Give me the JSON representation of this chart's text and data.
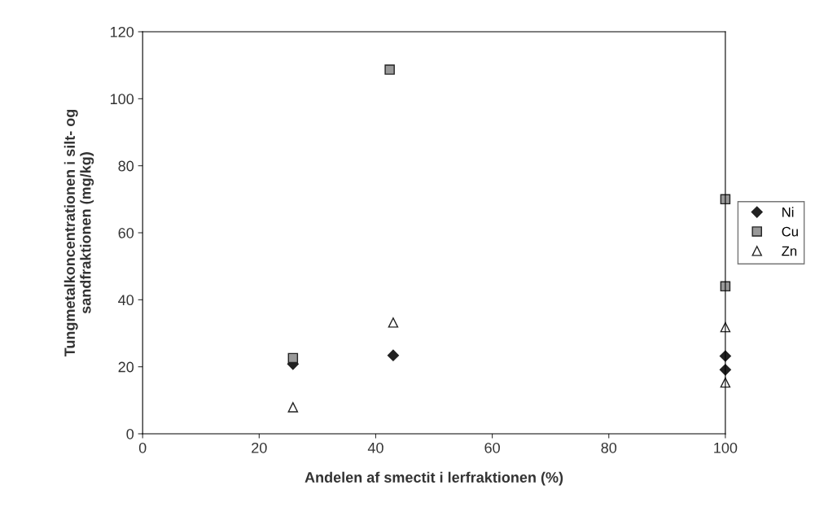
{
  "chart_data": {
    "type": "scatter",
    "xlabel": "Andelen af smectit i lerfraktionen (%)",
    "ylabel": "Tungmetalkoncentrationen i silt- og\nsandfraktionen (mg/kg)",
    "xlim": [
      0,
      100
    ],
    "ylim": [
      0,
      120
    ],
    "xticks": [
      0,
      20,
      40,
      60,
      80,
      100
    ],
    "yticks": [
      0,
      20,
      40,
      60,
      80,
      100,
      120
    ],
    "grid": false,
    "legend": "right",
    "series": [
      {
        "name": "Ni",
        "color": "#222222",
        "marker": "diamond",
        "x": [
          25.8,
          43,
          100,
          100
        ],
        "values": [
          20.8,
          23.4,
          23.2,
          19.1
        ]
      },
      {
        "name": "Cu",
        "color": "#999999",
        "marker": "square",
        "x": [
          25.8,
          42.4,
          100,
          100
        ],
        "values": [
          22.6,
          108.7,
          70,
          44
        ]
      },
      {
        "name": "Zn",
        "color": "#ffffff",
        "marker": "triangle",
        "x": [
          25.8,
          43,
          100,
          100
        ],
        "values": [
          7.9,
          33.2,
          31.8,
          15.3
        ]
      }
    ]
  }
}
